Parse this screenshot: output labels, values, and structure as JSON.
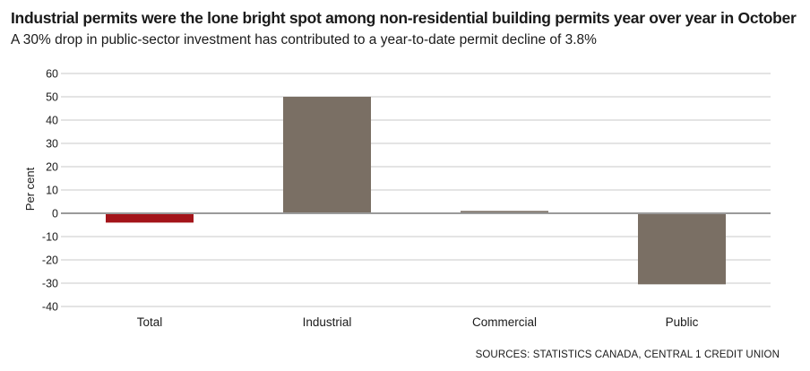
{
  "title": "Industrial permits were the lone bright spot among non-residential building permits year over year in October",
  "subtitle": "A 30% drop in public-sector investment has contributed to a year-to-date permit decline of 3.8%",
  "source": "SOURCES:  STATISTICS CANADA, CENTRAL 1 CREDIT UNION",
  "colors": {
    "highlight": "#a3141a",
    "bar": "#7a6f64",
    "grid": "#c8c8c8",
    "zero": "#9a9a9a"
  },
  "chart_data": {
    "type": "bar",
    "categories": [
      "Total",
      "Industrial",
      "Commercial",
      "Public"
    ],
    "values": [
      -4,
      50,
      1,
      -30.5
    ],
    "ylabel": "Per cent",
    "ylim": [
      -40,
      60
    ],
    "yticks": [
      60,
      50,
      40,
      30,
      20,
      10,
      0,
      -10,
      -20,
      -30,
      -40
    ],
    "grid": true,
    "highlight_category": "Total"
  }
}
